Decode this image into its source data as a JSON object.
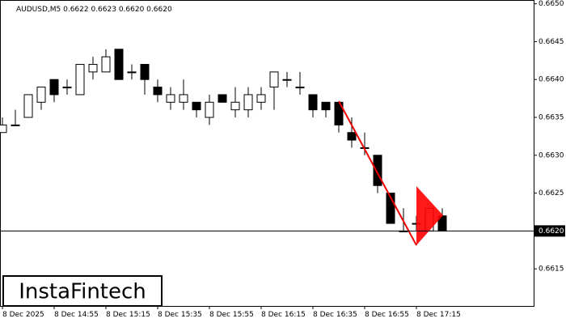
{
  "chart_data": {
    "type": "candlestick",
    "title": "AUDUSD,M5  0.6622 0.6623 0.6620 0.6620",
    "categories": [
      "8 Dec 2025",
      null,
      null,
      null,
      "8 Dec 14:55",
      null,
      null,
      null,
      "8 Dec 15:15",
      null,
      null,
      null,
      "8 Dec 15:35",
      null,
      null,
      null,
      "8 Dec 15:55",
      null,
      null,
      null,
      "8 Dec 16:15",
      null,
      null,
      null,
      "8 Dec 16:35",
      null,
      null,
      null,
      "8 Dec 16:55",
      null,
      null,
      null,
      "8 Dec 17:15",
      null,
      null
    ],
    "open": [
      0.6633,
      0.6634,
      0.6635,
      0.6637,
      0.664,
      0.6639,
      0.6638,
      0.6641,
      0.6641,
      0.6644,
      0.6641,
      0.6642,
      0.6639,
      0.6637,
      0.6637,
      0.6637,
      0.6635,
      0.6638,
      0.6636,
      0.6636,
      0.6637,
      0.6639,
      0.664,
      0.6639,
      0.6638,
      0.6637,
      0.6637,
      0.6633,
      0.6631,
      0.663,
      0.6625,
      0.662,
      0.6621,
      0.662,
      0.6622
    ],
    "high": [
      0.6635,
      0.6636,
      0.6638,
      0.6639,
      0.664,
      0.664,
      0.6642,
      0.6643,
      0.6644,
      0.6644,
      0.6642,
      0.6642,
      0.664,
      0.6639,
      0.664,
      0.6637,
      0.6638,
      0.6638,
      0.6639,
      0.6639,
      0.6639,
      0.6641,
      0.6641,
      0.6641,
      0.6638,
      0.6637,
      0.6637,
      0.6635,
      0.6633,
      0.663,
      0.6625,
      0.6623,
      0.6622,
      0.6623,
      0.6623
    ],
    "low": [
      0.6633,
      0.6634,
      0.6635,
      0.6636,
      0.6637,
      0.6638,
      0.6638,
      0.664,
      0.6641,
      0.664,
      0.664,
      0.6638,
      0.6637,
      0.6636,
      0.6636,
      0.6635,
      0.6634,
      0.6637,
      0.6635,
      0.6635,
      0.6636,
      0.6636,
      0.6639,
      0.6638,
      0.6635,
      0.6635,
      0.6633,
      0.6631,
      0.663,
      0.6625,
      0.6621,
      0.662,
      0.662,
      0.662,
      0.662
    ],
    "close": [
      0.6634,
      0.6634,
      0.6638,
      0.6639,
      0.6638,
      0.6639,
      0.6642,
      0.6642,
      0.6643,
      0.664,
      0.6641,
      0.664,
      0.6638,
      0.6638,
      0.6638,
      0.6636,
      0.6637,
      0.6637,
      0.6637,
      0.6638,
      0.6638,
      0.6641,
      0.664,
      0.6639,
      0.6636,
      0.6636,
      0.6634,
      0.6632,
      0.6631,
      0.6626,
      0.6621,
      0.662,
      0.6621,
      0.6623,
      0.662
    ],
    "ylim": [
      0.66101,
      0.66505
    ],
    "yticks": [
      {
        "value": 0.6615,
        "label": "0.6615"
      },
      {
        "value": 0.662,
        "label": "0.6620"
      },
      {
        "value": 0.6625,
        "label": "0.6625"
      },
      {
        "value": 0.663,
        "label": "0.6630"
      },
      {
        "value": 0.6635,
        "label": "0.6635"
      },
      {
        "value": 0.664,
        "label": "0.6640"
      },
      {
        "value": 0.6645,
        "label": "0.6645"
      },
      {
        "value": 0.665,
        "label": "0.6650"
      }
    ],
    "current_price": {
      "value": 0.662,
      "label": "0.6620"
    },
    "logo": "InstaFintech"
  }
}
